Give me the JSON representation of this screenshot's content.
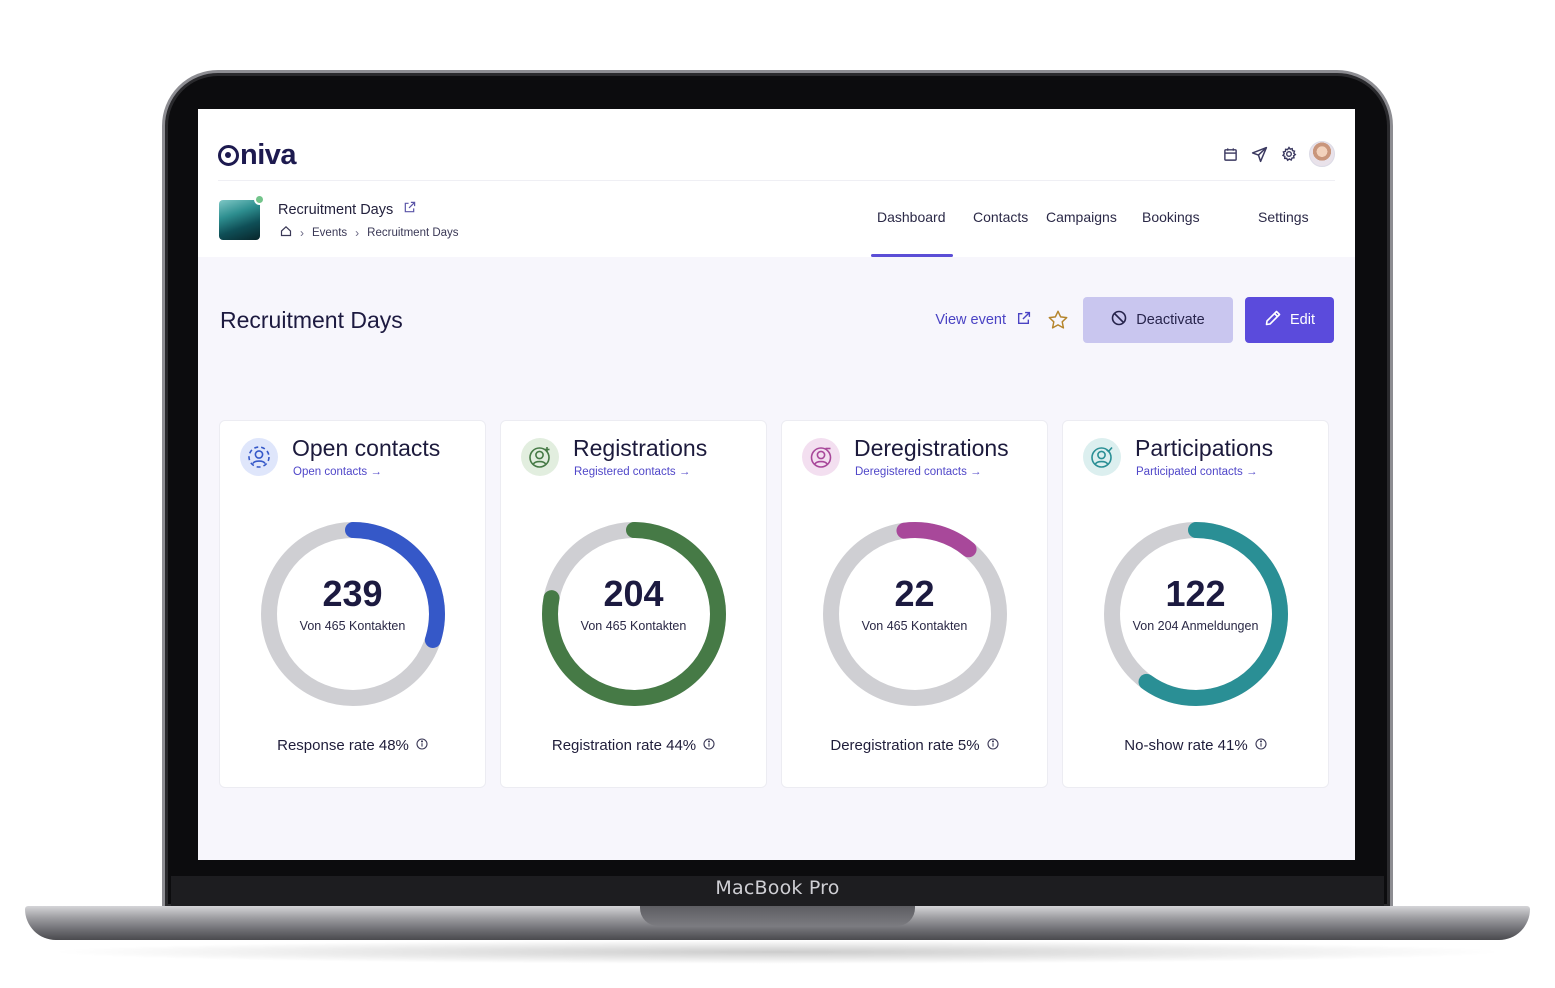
{
  "device": {
    "brand": "MacBook Pro"
  },
  "app": {
    "logo": "niva"
  },
  "header": {
    "event_title": "Recruitment Days",
    "breadcrumb": [
      "Events",
      "Recruitment Days"
    ],
    "tabs": [
      {
        "label": "Dashboard",
        "active": true
      },
      {
        "label": "Contacts"
      },
      {
        "label": "Campaigns"
      },
      {
        "label": "Bookings"
      },
      {
        "label": "Settings"
      }
    ]
  },
  "page": {
    "title": "Recruitment Days",
    "view_event": "View event",
    "deactivate": "Deactivate",
    "edit": "Edit"
  },
  "colors": {
    "accent": "#5b4bdc",
    "blue": "#3558c8",
    "green": "#467a46",
    "magenta": "#a8489a",
    "teal": "#2a8f95",
    "track": "#cfcfd3"
  },
  "cards": [
    {
      "title": "Open contacts",
      "link": "Open contacts →",
      "value": "239",
      "sub": "Von 465 Kontakten",
      "rate": "Response rate 48%",
      "fraction": 0.3,
      "start": 0.0,
      "color": "#3558c8",
      "icon": "contacts-icon"
    },
    {
      "title": "Registrations",
      "link": "Registered contacts →",
      "value": "204",
      "sub": "Von 465 Kontakten",
      "rate": "Registration rate 44%",
      "fraction": 0.78,
      "start": 0.0,
      "color": "#467a46",
      "icon": "registration-icon"
    },
    {
      "title": "Deregistrations",
      "link": "Deregistered contacts →",
      "value": "22",
      "sub": "Von 465 Kontakten",
      "rate": "Deregistration rate 5%",
      "fraction": 0.13,
      "start": -0.02,
      "color": "#a8489a",
      "icon": "deregistration-icon"
    },
    {
      "title": "Participations",
      "link": "Participated contacts →",
      "value": "122",
      "sub": "Von 204 Anmeldungen",
      "rate": "No-show rate 41%",
      "fraction": 0.6,
      "start": 0.0,
      "color": "#2a8f95",
      "icon": "participation-icon"
    }
  ]
}
